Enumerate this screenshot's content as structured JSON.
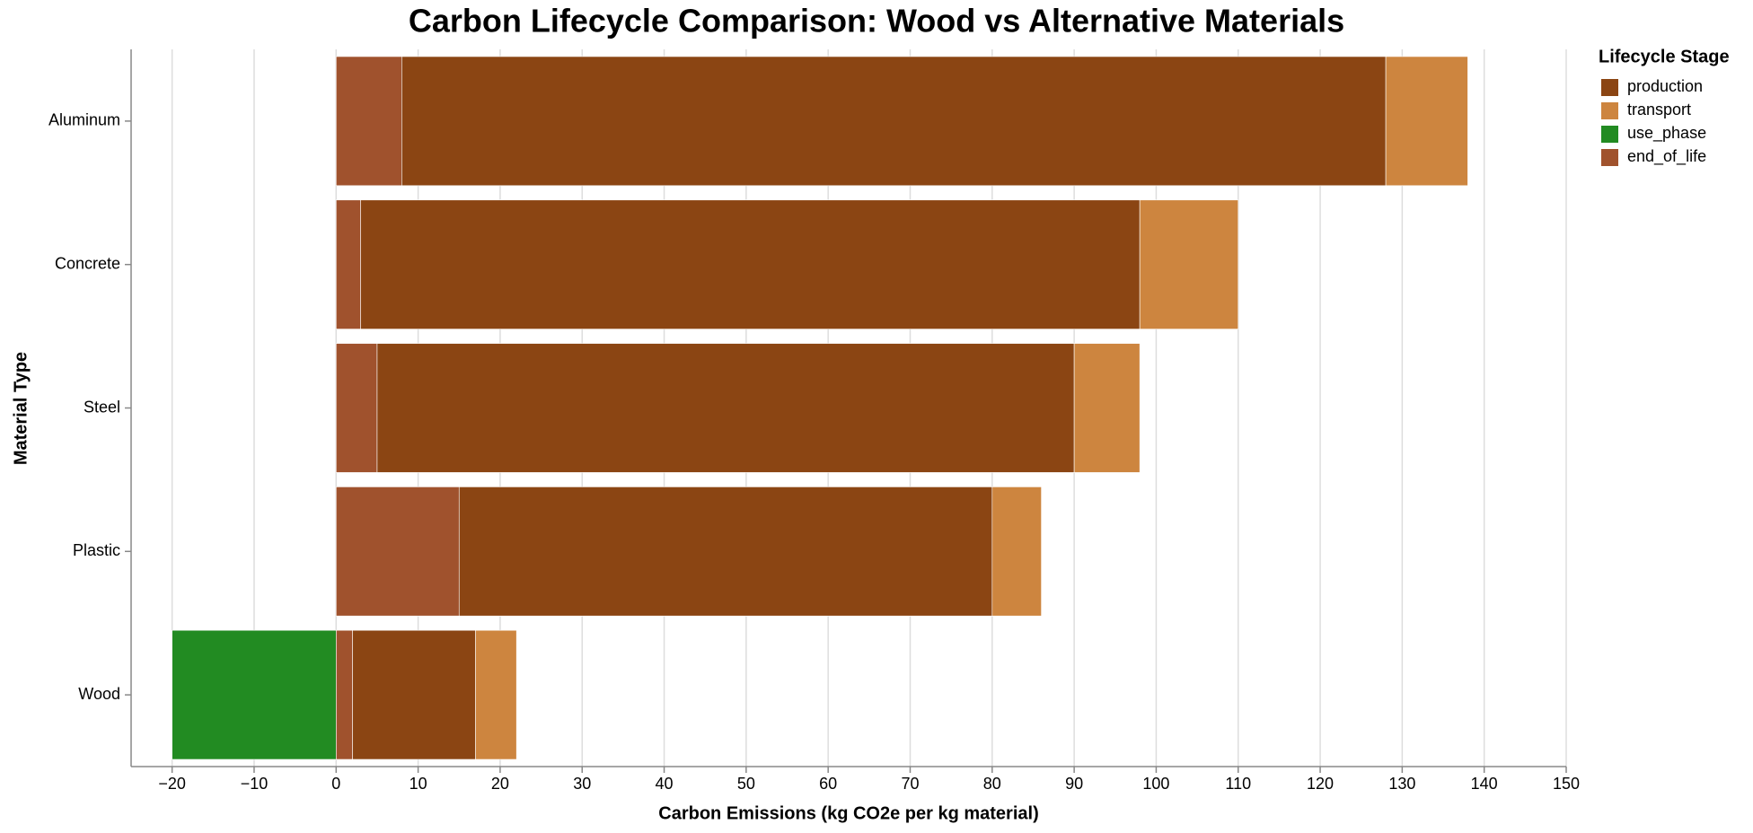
{
  "chart_data": {
    "type": "stacked-bar-horizontal",
    "title": "Carbon Lifecycle Comparison: Wood vs Alternative Materials",
    "x_label": "Carbon Emissions (kg CO2e per kg material)",
    "y_label": "Material Type",
    "legend_title": "Lifecycle Stage",
    "legend_position": "top-right",
    "grid": true,
    "categories": [
      "Aluminum",
      "Concrete",
      "Steel",
      "Plastic",
      "Wood"
    ],
    "series": [
      {
        "name": "production",
        "color": "#8b4513",
        "values": [
          120,
          95,
          85,
          65,
          15
        ]
      },
      {
        "name": "transport",
        "color": "#cd853f",
        "values": [
          10,
          12,
          8,
          6,
          5
        ]
      },
      {
        "name": "use_phase",
        "color": "#228b22",
        "values": [
          0,
          0,
          0,
          0,
          -20
        ]
      },
      {
        "name": "end_of_life",
        "color": "#a0522d",
        "values": [
          8,
          3,
          5,
          15,
          2
        ]
      }
    ],
    "xlim": [
      -25,
      150
    ],
    "xticks": [
      {
        "value": -20,
        "label": "−20"
      },
      {
        "value": -10,
        "label": "−10"
      },
      0,
      10,
      20,
      30,
      40,
      50,
      60,
      70,
      80,
      90,
      100,
      110,
      120,
      130,
      140,
      150
    ]
  }
}
